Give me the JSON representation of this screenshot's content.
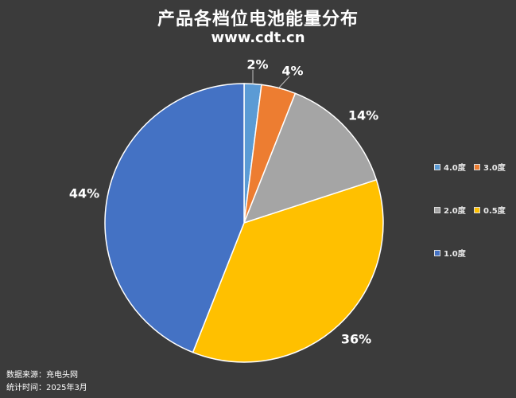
{
  "header": {
    "title": "产品各档位电池能量分布",
    "subtitle": "www.cdt.cn"
  },
  "chart_data": {
    "type": "pie",
    "categories": [
      "4.0度",
      "3.0度",
      "2.0度",
      "0.5度",
      "1.0度"
    ],
    "values": [
      2,
      4,
      14,
      36,
      44
    ],
    "labels": [
      "2%",
      "4%",
      "14%",
      "36%",
      "44%"
    ],
    "colors": [
      "#5b9bd5",
      "#ed7d31",
      "#a5a5a5",
      "#ffc000",
      "#4472c4"
    ],
    "legend_position": "right"
  },
  "legend": {
    "items": [
      {
        "label": "4.0度",
        "color": "#5b9bd5"
      },
      {
        "label": "3.0度",
        "color": "#ed7d31"
      },
      {
        "label": "2.0度",
        "color": "#a5a5a5"
      },
      {
        "label": "0.5度",
        "color": "#ffc000"
      },
      {
        "label": "1.0度",
        "color": "#4472c4"
      }
    ]
  },
  "footer": {
    "source": "数据来源：充电头网",
    "time": "统计时间：2025年3月"
  }
}
